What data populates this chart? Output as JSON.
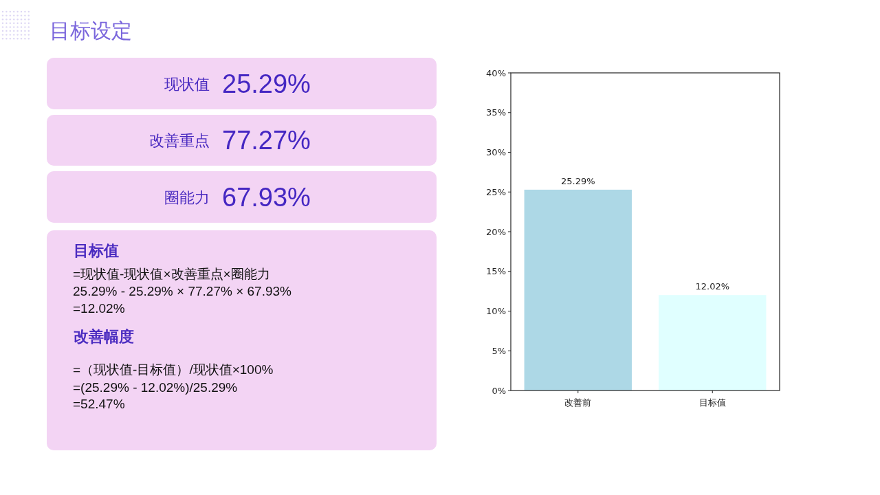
{
  "chart_data": [
    {
      "type": "other",
      "title": "目标设定",
      "annotations": [
        "现状值",
        "25.29%",
        "改善重点",
        "77.27%",
        "圈能力",
        "67.93%",
        "目标值",
        "=现状值-现状值×改善重点×圈能力",
        "25.29% - 25.29% × 77.27% × 67.93%",
        "=12.02%",
        "改善幅度",
        "=（现状值-目标值）/现状值×100%",
        "=(25.29% - 12.02%)/25.29%",
        "=52.47%"
      ]
    },
    {
      "type": "bar",
      "categories": [
        "改善前",
        "目标值"
      ],
      "values": [
        25.29,
        12.02
      ],
      "colors": [
        "#add8e6",
        "#e0ffff"
      ],
      "value_labels": [
        "25.29%",
        "12.02%"
      ],
      "ylim": [
        0,
        40
      ],
      "yticks": [
        {
          "value": 0,
          "label": "0%"
        },
        {
          "value": 5,
          "label": "5%"
        },
        {
          "value": 10,
          "label": "10%"
        },
        {
          "value": 15,
          "label": "15%"
        },
        {
          "value": 20,
          "label": "20%"
        },
        {
          "value": 25,
          "label": "25%"
        },
        {
          "value": 30,
          "label": "30%"
        },
        {
          "value": 35,
          "label": "35%"
        },
        {
          "value": 40,
          "label": "40%"
        }
      ]
    }
  ]
}
